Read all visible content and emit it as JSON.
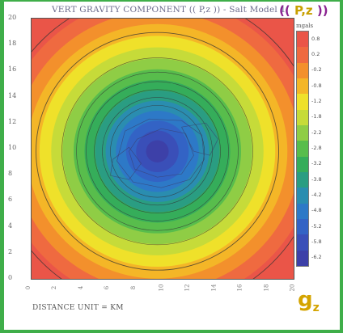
{
  "header": {
    "title": "VERT GRAVITY COMPONENT (( P,z )) - Salt Model 1",
    "badge_prefix": "((",
    "badge_mid": "P,z",
    "badge_suffix": "))"
  },
  "footer": {
    "xaxis_label": "DISTANCE UNIT = KM",
    "gz_main": "g",
    "gz_sub": "z"
  },
  "colors": {
    "border": "#3fae49",
    "title_text": "#6b6b8c",
    "badge_purple": "#8a2290",
    "badge_gold": "#c8a000"
  },
  "chart_data": {
    "type": "heatmap",
    "title": "VERT GRAVITY COMPONENT (( P,z )) - Salt Model 1",
    "xlabel": "DISTANCE UNIT = KM",
    "ylabel": "",
    "xlim": [
      0,
      20
    ],
    "ylim": [
      0,
      20
    ],
    "x_ticks": [
      "0",
      "2",
      "4",
      "6",
      "8",
      "10",
      "12",
      "14",
      "16",
      "18",
      "20"
    ],
    "y_ticks": [
      "0",
      "2",
      "4",
      "6",
      "8",
      "10",
      "12",
      "14",
      "16",
      "18",
      "20"
    ],
    "colorbar": {
      "units": "mgals",
      "labels": [
        "0.8",
        "0.2",
        "-0.2",
        "-0.8",
        "-1.2",
        "-1.8",
        "-2.2",
        "-2.8",
        "-3.2",
        "-3.8",
        "-4.2",
        "-4.8",
        "-5.2",
        "-5.8",
        "-6.2"
      ],
      "colors": [
        "#ea5548",
        "#ef6a40",
        "#f3902c",
        "#f4b627",
        "#efe12a",
        "#c6db39",
        "#8fcd45",
        "#58bd4c",
        "#35ad5a",
        "#2a9d82",
        "#2a8db0",
        "#2d79c7",
        "#3363c5",
        "#3a4fb8",
        "#3d40a8"
      ]
    },
    "anomaly_center": [
      9.6,
      9.8
    ],
    "min_value": -6.2,
    "max_value": 0.8,
    "grid": false
  }
}
